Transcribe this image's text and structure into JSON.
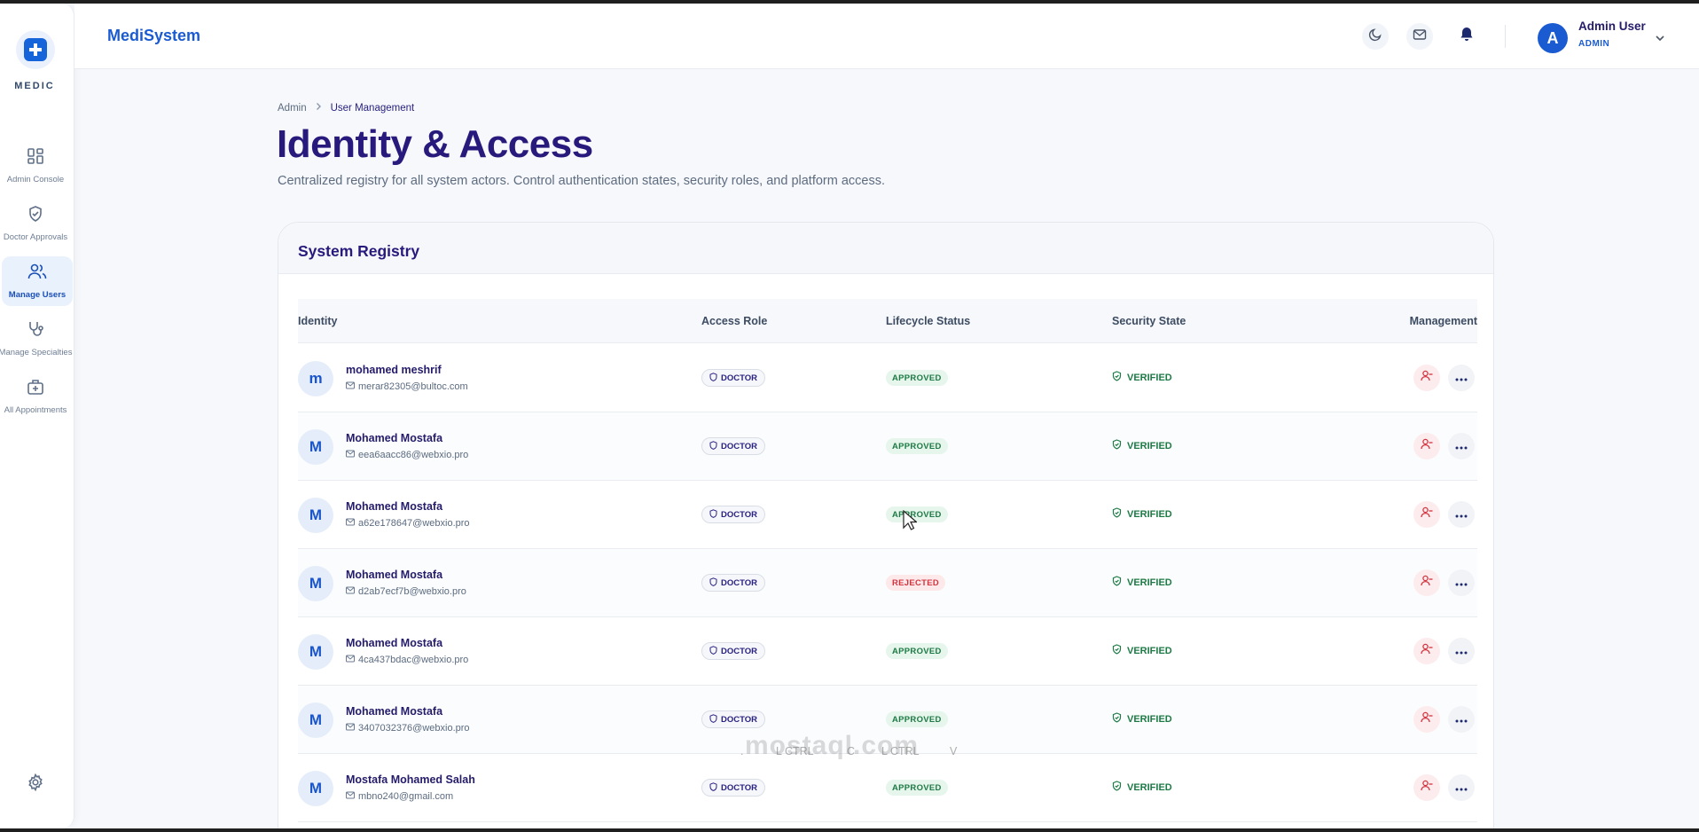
{
  "sidebar": {
    "logo_text": "MEDIC",
    "items": [
      {
        "label": "Admin Console",
        "icon": "grid-icon"
      },
      {
        "label": "Doctor Approvals",
        "icon": "shield-check-icon"
      },
      {
        "label": "Manage Users",
        "icon": "users-icon",
        "active": true
      },
      {
        "label": "Manage Specialties",
        "icon": "stethoscope-icon"
      },
      {
        "label": "All Appointments",
        "icon": "briefcase-medical-icon"
      }
    ],
    "settings_icon": "gear-icon"
  },
  "header": {
    "brand": "MediSystem",
    "user_initial": "A",
    "user_name": "Admin User",
    "user_role": "ADMIN"
  },
  "breadcrumb": {
    "root": "Admin",
    "current": "User Management"
  },
  "page": {
    "title": "Identity & Access",
    "subtitle": "Centralized registry for all system actors. Control authentication states, security roles, and platform access."
  },
  "registry": {
    "title": "System Registry",
    "columns": [
      "Identity",
      "Access Role",
      "Lifecycle Status",
      "Security State",
      "Management"
    ],
    "rows": [
      {
        "initial": "m",
        "name": "mohamed meshrif",
        "email": "merar82305@bultoc.com",
        "role": "DOCTOR",
        "status": "APPROVED",
        "security": "VERIFIED"
      },
      {
        "initial": "M",
        "name": "Mohamed Mostafa",
        "email": "eea6aacc86@webxio.pro",
        "role": "DOCTOR",
        "status": "APPROVED",
        "security": "VERIFIED"
      },
      {
        "initial": "M",
        "name": "Mohamed Mostafa",
        "email": "a62e178647@webxio.pro",
        "role": "DOCTOR",
        "status": "APPROVED",
        "security": "VERIFIED"
      },
      {
        "initial": "M",
        "name": "Mohamed Mostafa",
        "email": "d2ab7ecf7b@webxio.pro",
        "role": "DOCTOR",
        "status": "REJECTED",
        "security": "VERIFIED"
      },
      {
        "initial": "M",
        "name": "Mohamed Mostafa",
        "email": "4ca437bdac@webxio.pro",
        "role": "DOCTOR",
        "status": "APPROVED",
        "security": "VERIFIED"
      },
      {
        "initial": "M",
        "name": "Mohamed Mostafa",
        "email": "3407032376@webxio.pro",
        "role": "DOCTOR",
        "status": "APPROVED",
        "security": "VERIFIED"
      },
      {
        "initial": "M",
        "name": "Mostafa Mohamed Salah",
        "email": "mbno240@gmail.com",
        "role": "DOCTOR",
        "status": "APPROVED",
        "security": "VERIFIED"
      }
    ]
  },
  "overlay": {
    "watermark": "mostaql.com",
    "keys": [
      ".",
      "L CTRL",
      "C",
      "L CTRL",
      "V"
    ]
  },
  "colors": {
    "brand": "#1a5bd1",
    "title": "#281a7c",
    "approved": "#1d7a45",
    "rejected": "#d2353f"
  }
}
